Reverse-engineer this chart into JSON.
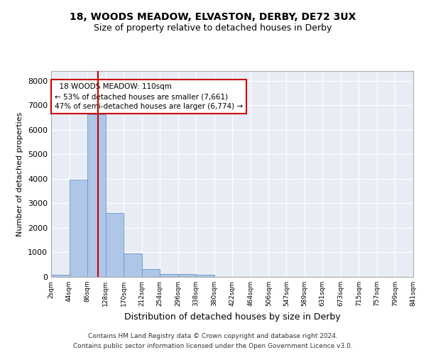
{
  "title1": "18, WOODS MEADOW, ELVASTON, DERBY, DE72 3UX",
  "title2": "Size of property relative to detached houses in Derby",
  "xlabel": "Distribution of detached houses by size in Derby",
  "ylabel": "Number of detached properties",
  "bar_color": "#aec6e8",
  "bar_edge_color": "#6699cc",
  "background_color": "#e8edf5",
  "grid_color": "#ffffff",
  "bin_edges": [
    2,
    44,
    86,
    128,
    170,
    212,
    254,
    296,
    338,
    380,
    422,
    464,
    506,
    547,
    589,
    631,
    673,
    715,
    757,
    799,
    841
  ],
  "bin_labels": [
    "2sqm",
    "44sqm",
    "86sqm",
    "128sqm",
    "170sqm",
    "212sqm",
    "254sqm",
    "296sqm",
    "338sqm",
    "380sqm",
    "422sqm",
    "464sqm",
    "506sqm",
    "547sqm",
    "589sqm",
    "631sqm",
    "673sqm",
    "715sqm",
    "757sqm",
    "799sqm",
    "841sqm"
  ],
  "bar_heights": [
    75,
    3980,
    6620,
    2620,
    960,
    310,
    130,
    115,
    100,
    0,
    0,
    0,
    0,
    0,
    0,
    0,
    0,
    0,
    0,
    0
  ],
  "property_size": 110,
  "red_line_color": "#cc0000",
  "annotation_text": "  18 WOODS MEADOW: 110sqm\n← 53% of detached houses are smaller (7,661)\n47% of semi-detached houses are larger (6,774) →",
  "annotation_box_color": "#cc0000",
  "ylim": [
    0,
    8400
  ],
  "yticks": [
    0,
    1000,
    2000,
    3000,
    4000,
    5000,
    6000,
    7000,
    8000
  ],
  "footer1": "Contains HM Land Registry data © Crown copyright and database right 2024.",
  "footer2": "Contains public sector information licensed under the Open Government Licence v3.0."
}
